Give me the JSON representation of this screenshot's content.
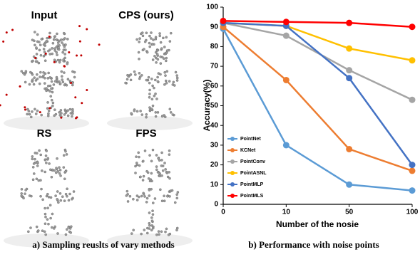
{
  "figure": {
    "panel_labels": [
      "Input",
      "CPS (ours)",
      "RS",
      "FPS"
    ],
    "captions": [
      "a) Sampling reuslts of vary methods",
      "b) Performance with noise points"
    ]
  },
  "chart_data": {
    "type": "line",
    "x_label": "Number of the nosie",
    "y_label": "Accuracy(%)",
    "categories": [
      "0",
      "10",
      "50",
      "100"
    ],
    "ylim": [
      0,
      100
    ],
    "yticks": [
      0,
      10,
      20,
      30,
      40,
      50,
      60,
      70,
      80,
      90,
      100
    ],
    "legend": "lower left",
    "series": [
      {
        "name": "PointNet",
        "color": "#5b9bd5",
        "values": [
          89,
          30,
          10,
          7
        ]
      },
      {
        "name": "KCNet",
        "color": "#ed7d31",
        "values": [
          90,
          63,
          28,
          17
        ]
      },
      {
        "name": "PointConv",
        "color": "#a5a5a5",
        "values": [
          92,
          85.5,
          68,
          53
        ]
      },
      {
        "name": "PointASNL",
        "color": "#ffc000",
        "values": [
          92,
          90.5,
          79,
          73
        ]
      },
      {
        "name": "PointMLP",
        "color": "#4472c4",
        "values": [
          92,
          90.5,
          64,
          20
        ]
      },
      {
        "name": "PointMLS",
        "color": "#ff0000",
        "values": [
          93,
          92.5,
          92,
          90
        ]
      }
    ]
  }
}
